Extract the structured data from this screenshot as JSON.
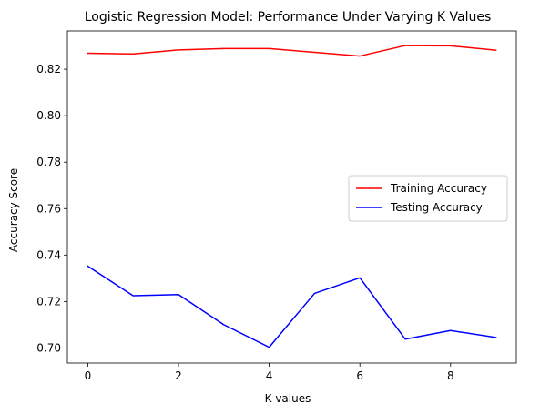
{
  "chart_data": {
    "type": "line",
    "title": "Logistic Regression Model: Performance Under Varying K Values",
    "xlabel": "K values",
    "ylabel": "Accuracy Score",
    "x": [
      0,
      1,
      2,
      3,
      4,
      5,
      6,
      7,
      8,
      9
    ],
    "xlim": [
      -0.45,
      9.45
    ],
    "ylim": [
      0.6935,
      0.8365
    ],
    "xticks": [
      0,
      2,
      4,
      6,
      8
    ],
    "yticks": [
      0.7,
      0.72,
      0.74,
      0.76,
      0.78,
      0.8,
      0.82
    ],
    "grid": false,
    "legend_position": "center-right",
    "series": [
      {
        "name": "Training Accuracy",
        "color": "#ff0000",
        "values": [
          0.8269,
          0.8266,
          0.8283,
          0.8289,
          0.8289,
          0.8273,
          0.8257,
          0.8302,
          0.8301,
          0.8282
        ]
      },
      {
        "name": "Testing Accuracy",
        "color": "#0000ff",
        "values": [
          0.7352,
          0.7225,
          0.723,
          0.71,
          0.7003,
          0.7235,
          0.7302,
          0.7038,
          0.7075,
          0.7045
        ]
      }
    ]
  }
}
